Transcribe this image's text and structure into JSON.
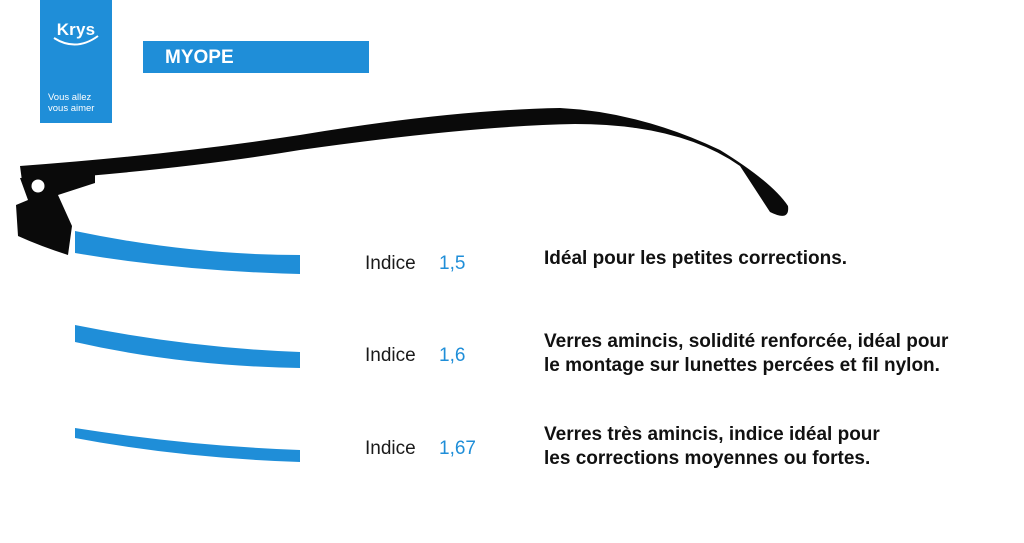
{
  "logo": {
    "brand": "Krys",
    "tagline_line1": "Vous allez",
    "tagline_line2": "vous aimer"
  },
  "banner": {
    "title": "MYOPE"
  },
  "colors": {
    "accent": "#1f8ed8",
    "frame": "#0a0a0a",
    "text": "#111111"
  },
  "lenses": [
    {
      "label": "Indice",
      "value": "1,5",
      "description_lines": [
        "Idéal pour les petites corrections."
      ]
    },
    {
      "label": "Indice",
      "value": "1,6",
      "description_lines": [
        "Verres amincis, solidité renforcée, idéal pour",
        "le montage sur lunettes percées et fil nylon."
      ]
    },
    {
      "label": "Indice",
      "value": "1,67",
      "description_lines": [
        "Verres très amincis, indice idéal pour",
        "les corrections moyennes ou fortes."
      ]
    }
  ]
}
